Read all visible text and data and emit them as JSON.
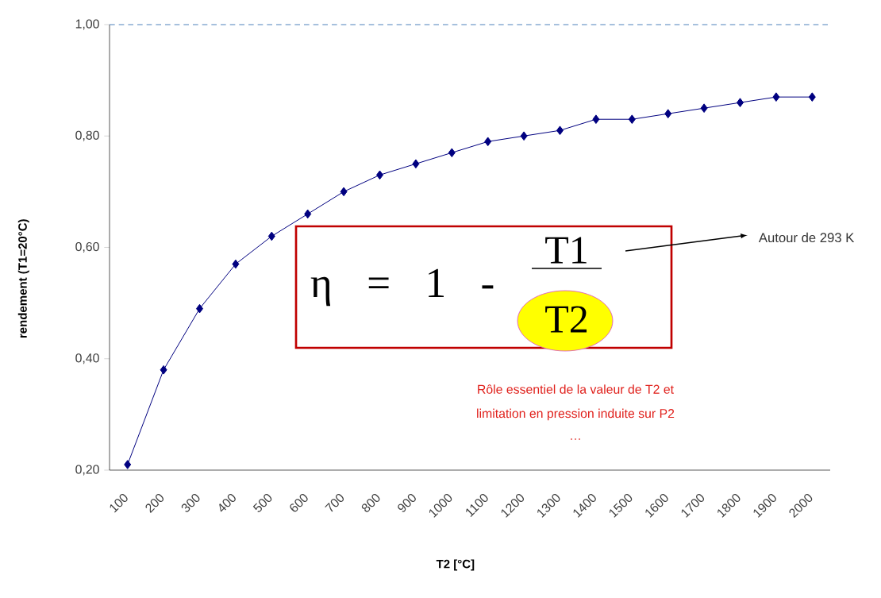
{
  "chart_data": {
    "type": "line",
    "xlabel": "T2 [°C]",
    "ylabel": "rendement (T1=20°C)",
    "categories": [
      "100",
      "200",
      "300",
      "400",
      "500",
      "600",
      "700",
      "800",
      "900",
      "1000",
      "1100",
      "1200",
      "1300",
      "1400",
      "1500",
      "1600",
      "1700",
      "1800",
      "1900",
      "2000"
    ],
    "series": [
      {
        "color": "#000080",
        "values": [
          0.21,
          0.38,
          0.49,
          0.57,
          0.62,
          0.66,
          0.7,
          0.73,
          0.75,
          0.77,
          0.79,
          0.8,
          0.81,
          0.83,
          0.83,
          0.84,
          0.85,
          0.86,
          0.87,
          0.87
        ]
      }
    ],
    "ylim": [
      0.2,
      1.0
    ],
    "yticks": [
      {
        "value": 0.2,
        "label": "0,20"
      },
      {
        "value": 0.4,
        "label": "0,40"
      },
      {
        "value": 0.6,
        "label": "0,60"
      },
      {
        "value": 0.8,
        "label": "0,80"
      },
      {
        "value": 1.0,
        "label": "1,00"
      }
    ],
    "marker": "diamond",
    "line_style": "solid",
    "ref_lines": [
      {
        "axis": "y",
        "value": 1.0,
        "color": "#4f81bd",
        "line_style": "dashed"
      }
    ],
    "annotations": [
      "η = 1 -",
      "T1",
      "T2",
      "Autour de 293 K",
      "Rôle essentiel de la valeur de T2 et",
      "limitation en pression induite sur P2",
      "…"
    ]
  }
}
